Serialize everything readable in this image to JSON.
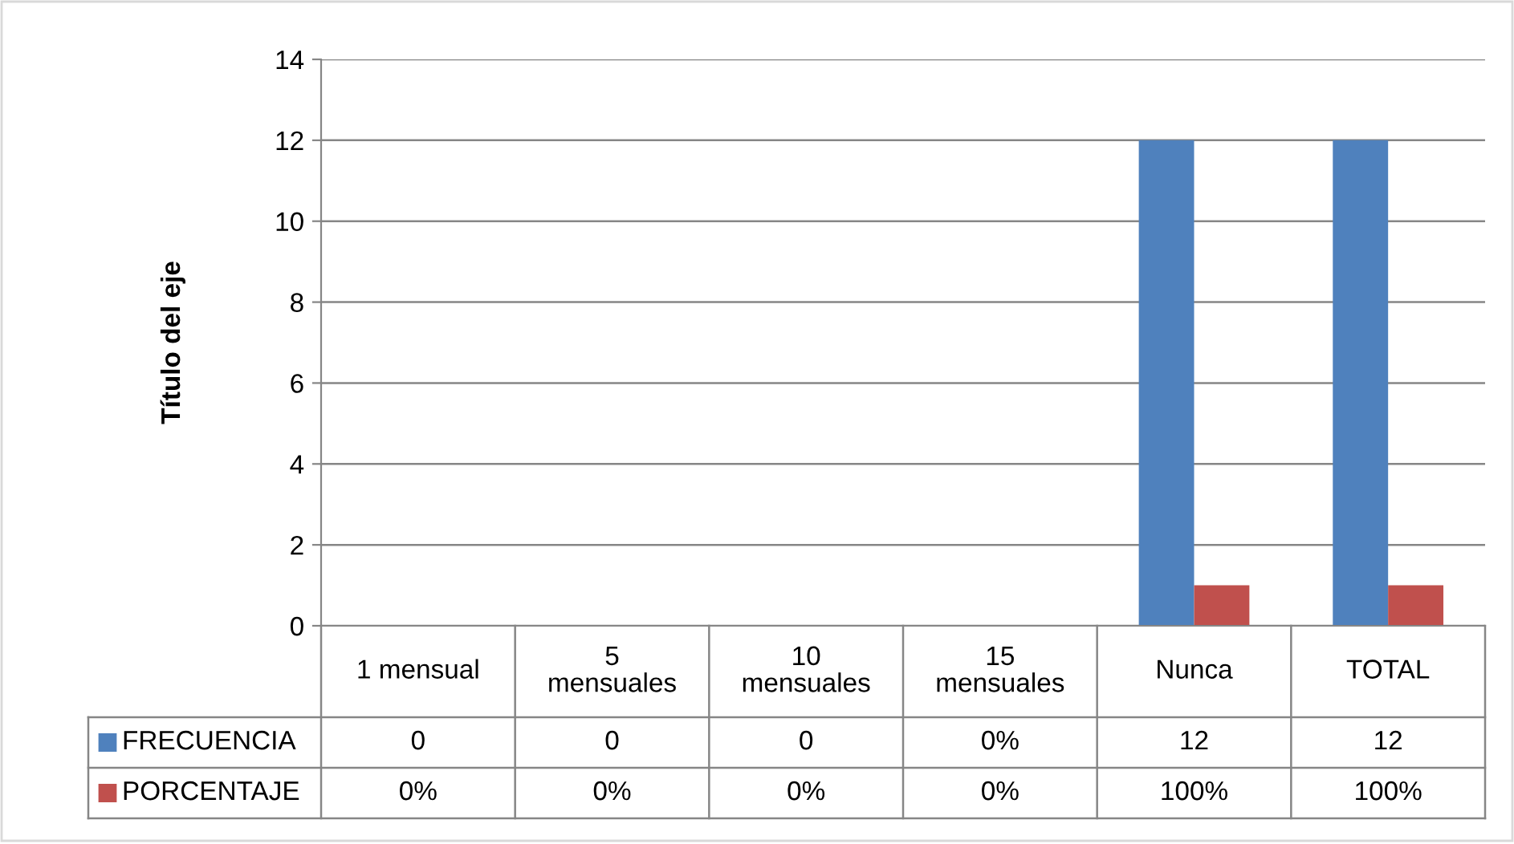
{
  "chart_data": {
    "type": "bar",
    "categories": [
      "1 mensual",
      "5 mensuales",
      "10 mensuales",
      "15 mensuales",
      "Nunca",
      "TOTAL"
    ],
    "series": [
      {
        "name": "FRECUENCIA",
        "color": "#4f81bd",
        "values": [
          0,
          0,
          0,
          0,
          12,
          12
        ],
        "value_labels": [
          "0",
          "0",
          "0",
          "0%",
          "12",
          "12"
        ]
      },
      {
        "name": "PORCENTAJE",
        "color": "#c0504d",
        "values": [
          0,
          0,
          0,
          0,
          1,
          1
        ],
        "value_labels": [
          "0%",
          "0%",
          "0%",
          "0%",
          "100%",
          "100%"
        ]
      }
    ],
    "ylabel": "Título del eje",
    "ylim": [
      0,
      14
    ],
    "yticks": [
      0,
      2,
      4,
      6,
      8,
      10,
      12,
      14
    ],
    "grid": "y",
    "legend": "bottom"
  }
}
